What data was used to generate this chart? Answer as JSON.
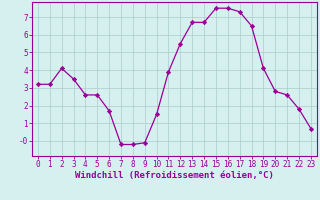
{
  "x": [
    0,
    1,
    2,
    3,
    4,
    5,
    6,
    7,
    8,
    9,
    10,
    11,
    12,
    13,
    14,
    15,
    16,
    17,
    18,
    19,
    20,
    21,
    22,
    23
  ],
  "y": [
    3.2,
    3.2,
    4.1,
    3.5,
    2.6,
    2.6,
    1.7,
    -0.2,
    -0.2,
    -0.1,
    1.5,
    3.9,
    5.5,
    6.7,
    6.7,
    7.5,
    7.5,
    7.3,
    6.5,
    4.1,
    2.8,
    2.6,
    1.8,
    0.7
  ],
  "line_color": "#990099",
  "marker": "D",
  "marker_size": 2.2,
  "bg_color": "#d6f0f0",
  "grid_color": "#aacccc",
  "axis_label_color": "#990099",
  "tick_color": "#990099",
  "xlabel": "Windchill (Refroidissement éolien,°C)",
  "xlim": [
    -0.5,
    23.5
  ],
  "ylim": [
    -0.85,
    7.85
  ],
  "ytick_vals": [
    0,
    1,
    2,
    3,
    4,
    5,
    6,
    7
  ],
  "ytick_labels": [
    "-0",
    "1",
    "2",
    "3",
    "4",
    "5",
    "6",
    "7"
  ],
  "xticks": [
    0,
    1,
    2,
    3,
    4,
    5,
    6,
    7,
    8,
    9,
    10,
    11,
    12,
    13,
    14,
    15,
    16,
    17,
    18,
    19,
    20,
    21,
    22,
    23
  ],
  "tick_fontsize": 5.5,
  "label_fontsize": 6.5
}
